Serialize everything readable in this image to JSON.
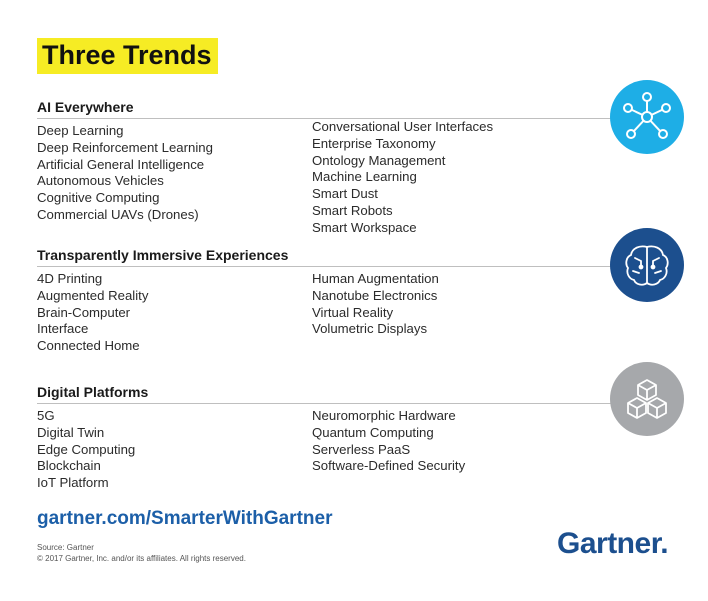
{
  "title": "Three Trends",
  "sections": [
    {
      "heading": "AI Everywhere",
      "left": [
        "Deep Learning",
        "Deep Reinforcement Learning",
        "Artificial General Intelligence",
        "Autonomous Vehicles",
        "Cognitive Computing",
        "Commercial UAVs (Drones)"
      ],
      "right": [
        "Conversational User Interfaces",
        "Enterprise Taxonomy",
        "Ontology Management",
        "Machine Learning",
        "Smart Dust",
        "Smart Robots",
        "Smart Workspace"
      ],
      "icon": "network-icon",
      "color": "#1eaee6"
    },
    {
      "heading": "Transparently Immersive Experiences",
      "left": [
        "4D Printing",
        "Augmented Reality",
        "Brain-Computer",
        "Interface",
        "Connected Home"
      ],
      "right": [
        "Human Augmentation",
        "Nanotube Electronics",
        "Virtual Reality",
        "Volumetric Displays"
      ],
      "icon": "brain-icon",
      "color": "#1c4f8e"
    },
    {
      "heading": "Digital Platforms",
      "left": [
        "5G",
        "Digital Twin",
        "Edge Computing",
        "Blockchain",
        "IoT Platform"
      ],
      "right": [
        "Neuromorphic Hardware",
        "Quantum Computing",
        "Serverless PaaS",
        "Software-Defined Security"
      ],
      "icon": "cubes-icon",
      "color": "#a6a8ab"
    }
  ],
  "url": "gartner.com/SmarterWithGartner",
  "source_line": "Source: Gartner",
  "copyright": "© 2017 Gartner, Inc. and/or its affiliates. All rights reserved.",
  "logo": "Gartner."
}
